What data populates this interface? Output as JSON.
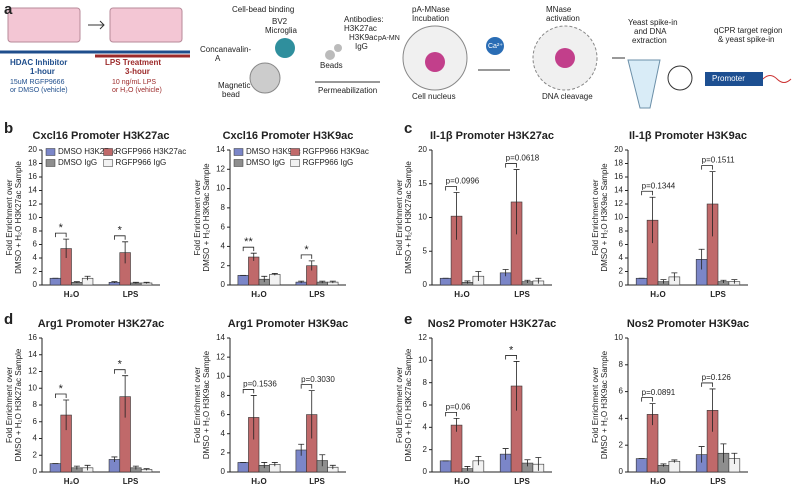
{
  "panel_labels": [
    "a",
    "b",
    "c",
    "d",
    "e"
  ],
  "schematic": [
    "HDAC Inhibitor",
    "1-hour",
    "15uM RGFP9666",
    "or DMSO (vehicle)",
    "LPS Treatment",
    "3-hour",
    "10 ng/mL LPS",
    "or H₂O (vehicle)",
    "Cell-bead binding",
    "BV2",
    "Microglia",
    "Concanavalin-",
    "A",
    "Magnetic",
    "bead",
    "Beads",
    "Antibodies:",
    "H3K27ac",
    "H3K9ac",
    "IgG",
    "Permeabilization",
    "pA-MNase",
    "Incubation",
    "pA-MN",
    "Cell nucleus",
    "Ca²⁺",
    "MNase",
    "activation",
    "DNA cleavage",
    "Yeast spike-in",
    "and DNA",
    "extraction",
    "qCPR target region",
    "& yeast spike-in",
    "Promoter"
  ],
  "chart_data": [
    {
      "type": "bar",
      "title": "Cxcl16 Promoter H3K27ac",
      "ylabel": [
        "Fold Enrichment over",
        "DMSO + H₂O H3K27ac Sample"
      ],
      "categories": [
        "H₂O",
        "LPS"
      ],
      "ylim": [
        0,
        20
      ],
      "yticks": [
        0,
        2,
        4,
        6,
        8,
        10,
        12,
        14,
        16,
        18,
        20
      ],
      "legend": true,
      "series": [
        {
          "name": "DMSO H3K27ac",
          "color": "#7b86c8",
          "values": [
            1,
            0.4
          ],
          "errors": [
            0,
            0.1
          ]
        },
        {
          "name": "RGFP966 H3K27ac",
          "color": "#c0696a",
          "values": [
            5.4,
            4.8
          ],
          "errors": [
            1.4,
            1.6
          ]
        },
        {
          "name": "DMSO IgG",
          "color": "#8e8e8e",
          "values": [
            0.4,
            0.3
          ],
          "errors": [
            0.1,
            0.1
          ]
        },
        {
          "name": "RGFP966 IgG",
          "color": "#f2f2f2",
          "values": [
            1.0,
            0.3
          ],
          "errors": [
            0.3,
            0.1
          ]
        }
      ],
      "annotations": [
        "*",
        "*"
      ]
    },
    {
      "type": "bar",
      "title": "Cxcl16 Promoter H3K9ac",
      "ylabel": [
        "Fold Enrichment over",
        "DMSO + H₂O H3K9ac Sample"
      ],
      "categories": [
        "H₂O",
        "LPS"
      ],
      "ylim": [
        0,
        14
      ],
      "yticks": [
        0,
        2,
        4,
        6,
        8,
        10,
        12,
        14
      ],
      "legend": true,
      "series": [
        {
          "name": "DMSO H3K9ac",
          "color": "#7b86c8",
          "values": [
            1,
            0.3
          ],
          "errors": [
            0,
            0.1
          ]
        },
        {
          "name": "RGFP966 H3K9ac",
          "color": "#c0696a",
          "values": [
            2.9,
            2.0
          ],
          "errors": [
            0.4,
            0.5
          ]
        },
        {
          "name": "DMSO IgG",
          "color": "#8e8e8e",
          "values": [
            0.6,
            0.3
          ],
          "errors": [
            0.3,
            0.1
          ]
        },
        {
          "name": "RGFP966 IgG",
          "color": "#f2f2f2",
          "values": [
            1.1,
            0.3
          ],
          "errors": [
            0.1,
            0.1
          ]
        }
      ],
      "annotations": [
        "**",
        "*"
      ]
    },
    {
      "type": "bar",
      "title": "Il-1β Promoter H3K27ac",
      "ylabel": [
        "Fold Enrichment over",
        "DMSO + H₂O H3K27ac Sample"
      ],
      "categories": [
        "H₂O",
        "LPS"
      ],
      "ylim": [
        0,
        20
      ],
      "yticks": [
        0,
        5,
        10,
        15,
        20
      ],
      "legend": false,
      "series": [
        {
          "color": "#7b86c8",
          "values": [
            1,
            1.8
          ],
          "errors": [
            0,
            0.5
          ]
        },
        {
          "color": "#c0696a",
          "values": [
            10.2,
            12.3
          ],
          "errors": [
            3.5,
            4.8
          ]
        },
        {
          "color": "#8e8e8e",
          "values": [
            0.4,
            0.5
          ],
          "errors": [
            0.2,
            0.2
          ]
        },
        {
          "color": "#f2f2f2",
          "values": [
            1.3,
            0.6
          ],
          "errors": [
            0.7,
            0.4
          ]
        }
      ],
      "annotations": [
        "p=0.0996",
        "p=0.0618"
      ]
    },
    {
      "type": "bar",
      "title": "Il-1β Promoter H3K9ac",
      "ylabel": [
        "Fold Enrichment over",
        "DMSO + H₂O H3K9ac Sample"
      ],
      "categories": [
        "H₂O",
        "LPS"
      ],
      "ylim": [
        0,
        20
      ],
      "yticks": [
        0,
        2,
        4,
        6,
        8,
        10,
        12,
        14,
        16,
        18,
        20
      ],
      "legend": false,
      "series": [
        {
          "color": "#7b86c8",
          "values": [
            1,
            3.8
          ],
          "errors": [
            0,
            1.5
          ]
        },
        {
          "color": "#c0696a",
          "values": [
            9.6,
            12
          ],
          "errors": [
            3.4,
            4.8
          ]
        },
        {
          "color": "#8e8e8e",
          "values": [
            0.5,
            0.5
          ],
          "errors": [
            0.3,
            0.2
          ]
        },
        {
          "color": "#f2f2f2",
          "values": [
            1.2,
            0.5
          ],
          "errors": [
            0.6,
            0.3
          ]
        }
      ],
      "annotations": [
        "p=0.1344",
        "p=0.1511"
      ]
    },
    {
      "type": "bar",
      "title": "Arg1 Promoter H3K27ac",
      "ylabel": [
        "Fold Enrichment over",
        "DMSO + H₂O H3K27ac Sample"
      ],
      "categories": [
        "H₂O",
        "LPS"
      ],
      "ylim": [
        0,
        16
      ],
      "yticks": [
        0,
        2,
        4,
        6,
        8,
        10,
        12,
        14,
        16
      ],
      "legend": false,
      "series": [
        {
          "color": "#7b86c8",
          "values": [
            1,
            1.5
          ],
          "errors": [
            0,
            0.3
          ]
        },
        {
          "color": "#c0696a",
          "values": [
            6.8,
            9
          ],
          "errors": [
            1.8,
            2.5
          ]
        },
        {
          "color": "#8e8e8e",
          "values": [
            0.5,
            0.5
          ],
          "errors": [
            0.2,
            0.2
          ]
        },
        {
          "color": "#f2f2f2",
          "values": [
            0.5,
            0.3
          ],
          "errors": [
            0.3,
            0.1
          ]
        }
      ],
      "annotations": [
        "*",
        "*"
      ]
    },
    {
      "type": "bar",
      "title": "Arg1 Promoter H3K9ac",
      "ylabel": [
        "Fold Enrichment over",
        "DMSO + H₂O H3K9ac Sample"
      ],
      "categories": [
        "H₂O",
        "LPS"
      ],
      "ylim": [
        0,
        14
      ],
      "yticks": [
        0,
        2,
        4,
        6,
        8,
        10,
        12,
        14
      ],
      "legend": false,
      "series": [
        {
          "color": "#7b86c8",
          "values": [
            1,
            2.3
          ],
          "errors": [
            0,
            0.6
          ]
        },
        {
          "color": "#c0696a",
          "values": [
            5.7,
            6
          ],
          "errors": [
            2.3,
            2.5
          ]
        },
        {
          "color": "#8e8e8e",
          "values": [
            0.7,
            1.2
          ],
          "errors": [
            0.3,
            0.6
          ]
        },
        {
          "color": "#f2f2f2",
          "values": [
            0.8,
            0.5
          ],
          "errors": [
            0.2,
            0.2
          ]
        }
      ],
      "annotations": [
        "p=0.1536",
        "p=0.3030"
      ]
    },
    {
      "type": "bar",
      "title": "Nos2 Promoter H3K27ac",
      "ylabel": [
        "Fold Enrichment over",
        "DMSO + H₂O H3K27ac Sample"
      ],
      "categories": [
        "H₂O",
        "LPS"
      ],
      "ylim": [
        0,
        12
      ],
      "yticks": [
        0,
        2,
        4,
        6,
        8,
        10,
        12
      ],
      "legend": false,
      "series": [
        {
          "color": "#7b86c8",
          "values": [
            1,
            1.6
          ],
          "errors": [
            0,
            0.5
          ]
        },
        {
          "color": "#c0696a",
          "values": [
            4.2,
            7.7
          ],
          "errors": [
            0.6,
            2.2
          ]
        },
        {
          "color": "#8e8e8e",
          "values": [
            0.3,
            0.8
          ],
          "errors": [
            0.2,
            0.3
          ]
        },
        {
          "color": "#f2f2f2",
          "values": [
            1.0,
            0.7
          ],
          "errors": [
            0.4,
            0.6
          ]
        }
      ],
      "annotations": [
        "p=0.06",
        "*"
      ]
    },
    {
      "type": "bar",
      "title": "Nos2 Promoter H3K9ac",
      "ylabel": [
        "Fold Enrichment over",
        "DMSO + H₂O H3K9ac Sample"
      ],
      "categories": [
        "H₂O",
        "LPS"
      ],
      "ylim": [
        0,
        10
      ],
      "yticks": [
        0,
        2,
        4,
        6,
        8,
        10
      ],
      "legend": false,
      "series": [
        {
          "color": "#7b86c8",
          "values": [
            1,
            1.3
          ],
          "errors": [
            0,
            0.6
          ]
        },
        {
          "color": "#c0696a",
          "values": [
            4.3,
            4.6
          ],
          "errors": [
            0.8,
            1.6
          ]
        },
        {
          "color": "#8e8e8e",
          "values": [
            0.5,
            1.4
          ],
          "errors": [
            0.1,
            0.7
          ]
        },
        {
          "color": "#f2f2f2",
          "values": [
            0.8,
            1.0
          ],
          "errors": [
            0.1,
            0.4
          ]
        }
      ],
      "annotations": [
        "p=0.0891",
        "p=0.126"
      ]
    }
  ]
}
